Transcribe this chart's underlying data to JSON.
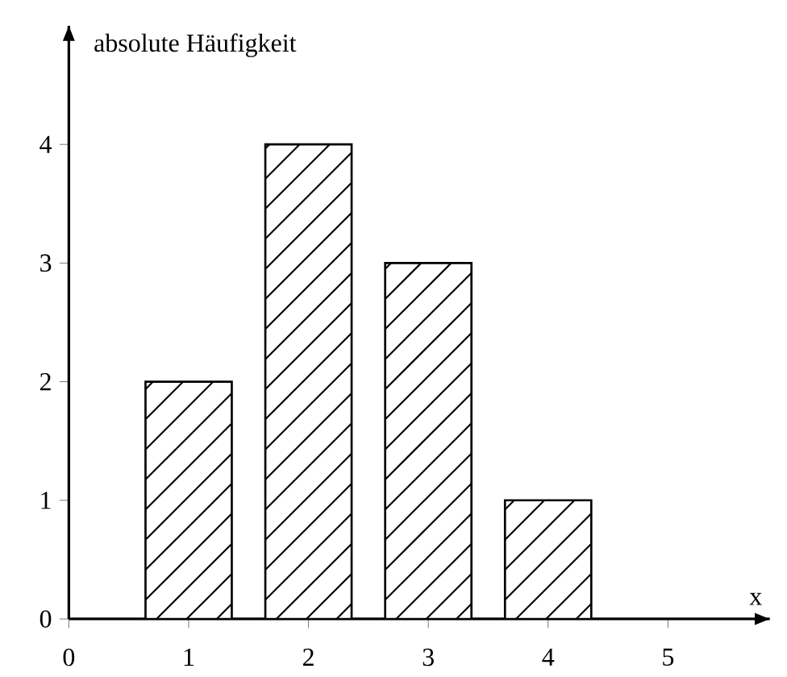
{
  "chart_data": {
    "type": "bar",
    "ylabel": "absolute Häufigkeit",
    "xlabel": "x",
    "x": [
      1,
      2,
      3,
      4
    ],
    "values": [
      2,
      4,
      3,
      1
    ],
    "color": "#ffffff",
    "xlim": [
      0,
      5.85
    ],
    "ylim": [
      0,
      5
    ],
    "xticks": [
      0,
      1,
      2,
      3,
      4,
      5
    ],
    "yticks": [
      0,
      1,
      2,
      3,
      4
    ],
    "grid": false
  }
}
